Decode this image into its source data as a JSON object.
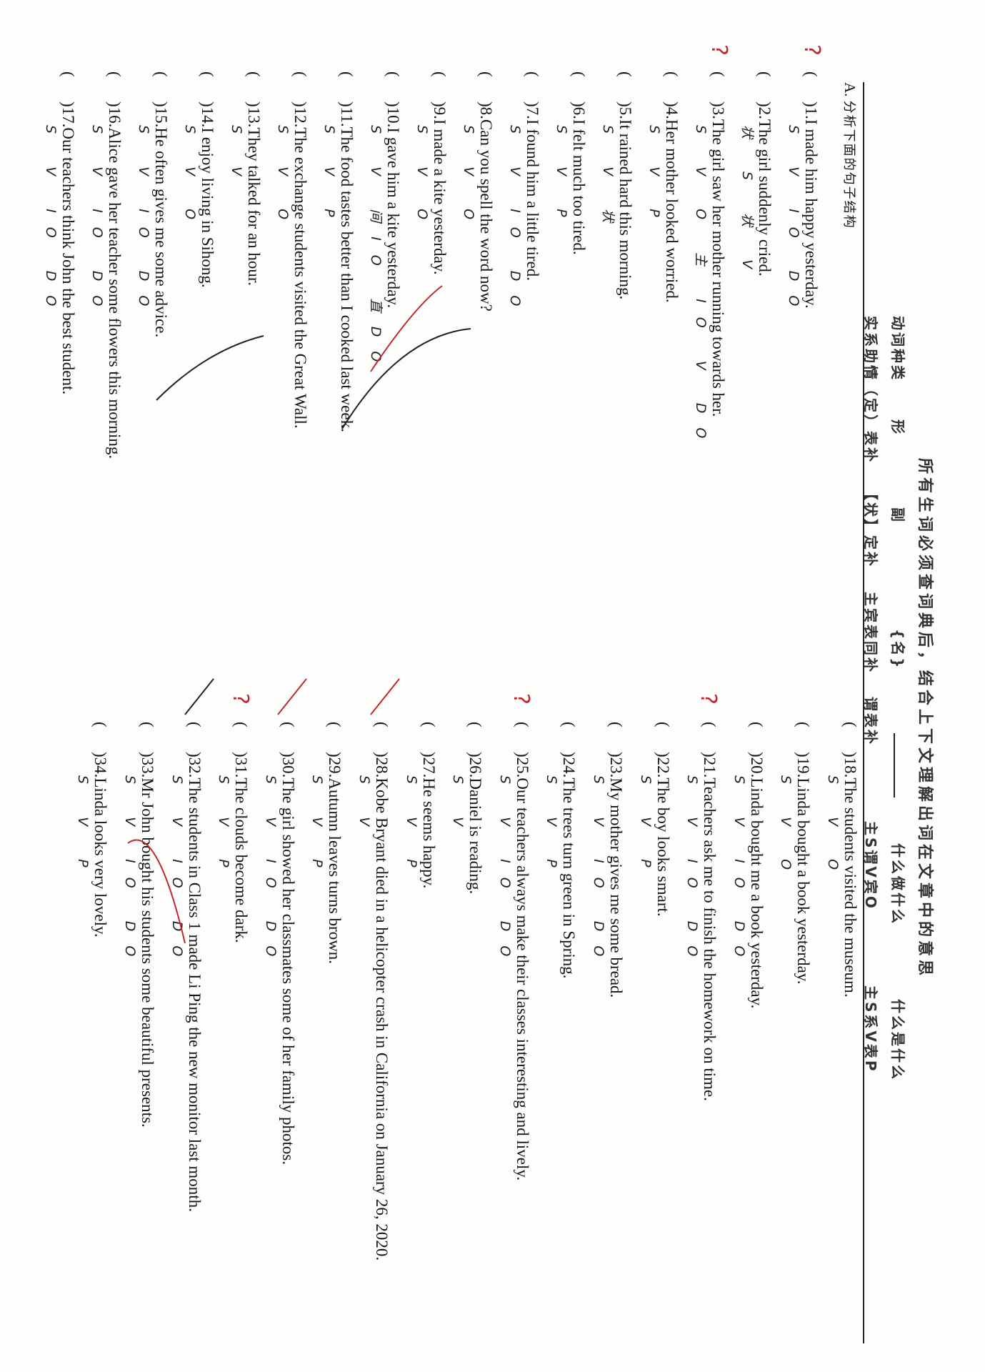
{
  "header": {
    "title": "所有生词必须查词典后，结合上下文理解出词在文章中的意思",
    "row2": [
      "动词种类",
      "形",
      "副",
      "{名}",
      "什么做什么",
      "什么是什么"
    ],
    "row3": [
      "实系助情（定）表补",
      "【状】定补",
      "主宾表同补",
      "谓表补",
      "主S谓V宾O",
      "主S系V表P"
    ]
  },
  "section_a": {
    "label": "A.",
    "title": "分析下面的句子结构"
  },
  "paren": "(",
  "items": [
    {
      "num": "1",
      "text": "I made him happy yesterday.",
      "marks": "S V IO DO"
    },
    {
      "num": "2",
      "text": "The girl suddenly cried.",
      "marks": "状 S 状 V"
    },
    {
      "num": "3",
      "text": "The girl saw her mother running towards her.",
      "marks": "S V O 主 IO V DO"
    },
    {
      "num": "4",
      "text": "Her mother looked worried.",
      "marks": "S V P"
    },
    {
      "num": "5",
      "text": "It rained hard this morning.",
      "marks": "S V 状"
    },
    {
      "num": "6",
      "text": "I felt much too tired.",
      "marks": "S V P"
    },
    {
      "num": "7",
      "text": "I found him a little tired.",
      "marks": "S V IO DO"
    },
    {
      "num": "8",
      "text": "Can you spell the word now?",
      "marks": "S V O"
    },
    {
      "num": "9",
      "text": "I made a kite yesterday.",
      "marks": "S V O"
    },
    {
      "num": "10",
      "text": "I gave him a kite yesterday.",
      "marks": "S V 间IO 直DO"
    },
    {
      "num": "11",
      "text": "The food tastes better than I cooked last week.",
      "marks": "S V P"
    },
    {
      "num": "12",
      "text": "The exchange students visited the Great Wall.",
      "marks": "S V O"
    },
    {
      "num": "13",
      "text": "They talked for an hour.",
      "marks": "S V"
    },
    {
      "num": "14",
      "text": "I enjoy living in Sihong.",
      "marks": "S V O"
    },
    {
      "num": "15",
      "text": "He often gives me some advice.",
      "marks": "S V IO DO"
    },
    {
      "num": "16",
      "text": "Alice gave her teacher some flowers this morning.",
      "marks": "S V IO DO"
    },
    {
      "num": "17",
      "text": "Our teachers think John the best student.",
      "marks": "S V IO DO"
    },
    {
      "num": "18",
      "text": "The students visited the museum.",
      "marks": "S V O"
    },
    {
      "num": "19",
      "text": "Linda bought a book yesterday.",
      "marks": "S V O"
    },
    {
      "num": "20",
      "text": "Linda bought me a book yesterday.",
      "marks": "S V IO DO"
    },
    {
      "num": "21",
      "text": "Teachers ask me to finish the homework on time.",
      "marks": "S V IO DO"
    },
    {
      "num": "22",
      "text": "The boy looks smart.",
      "marks": "S V P"
    },
    {
      "num": "23",
      "text": "My mother gives me some bread.",
      "marks": "S V IO DO"
    },
    {
      "num": "24",
      "text": "The trees turn green in Spring.",
      "marks": "S V P"
    },
    {
      "num": "25",
      "text": "Our teachers always make their classes interesting and lively.",
      "marks": "S V IO DO"
    },
    {
      "num": "26",
      "text": "Daniel is reading.",
      "marks": "S V"
    },
    {
      "num": "27",
      "text": "He seems happy.",
      "marks": "S V P"
    },
    {
      "num": "28",
      "text": "Kobe Bryant died in a helicopter crash in California on January 26, 2020.",
      "marks": "S V"
    },
    {
      "num": "29",
      "text": "Autumn leaves turns brown.",
      "marks": "S V P"
    },
    {
      "num": "30",
      "text": "The girl showed her classmates some of her family photos.",
      "marks": "S V IO DO"
    },
    {
      "num": "31",
      "text": "The clouds become dark.",
      "marks": "S V P"
    },
    {
      "num": "32",
      "text": "The students in Class 1 made Li Ping the new monitor last month.",
      "marks": "S V IO DO"
    },
    {
      "num": "33",
      "text": "Mr John bought his students some beautiful presents.",
      "marks": "S V IO DO"
    },
    {
      "num": "34",
      "text": "Linda looks very lovely.",
      "marks": "S V P"
    }
  ],
  "question_mark": "?",
  "colors": {
    "ink": "#151515",
    "red_pen": "#c0282d"
  }
}
